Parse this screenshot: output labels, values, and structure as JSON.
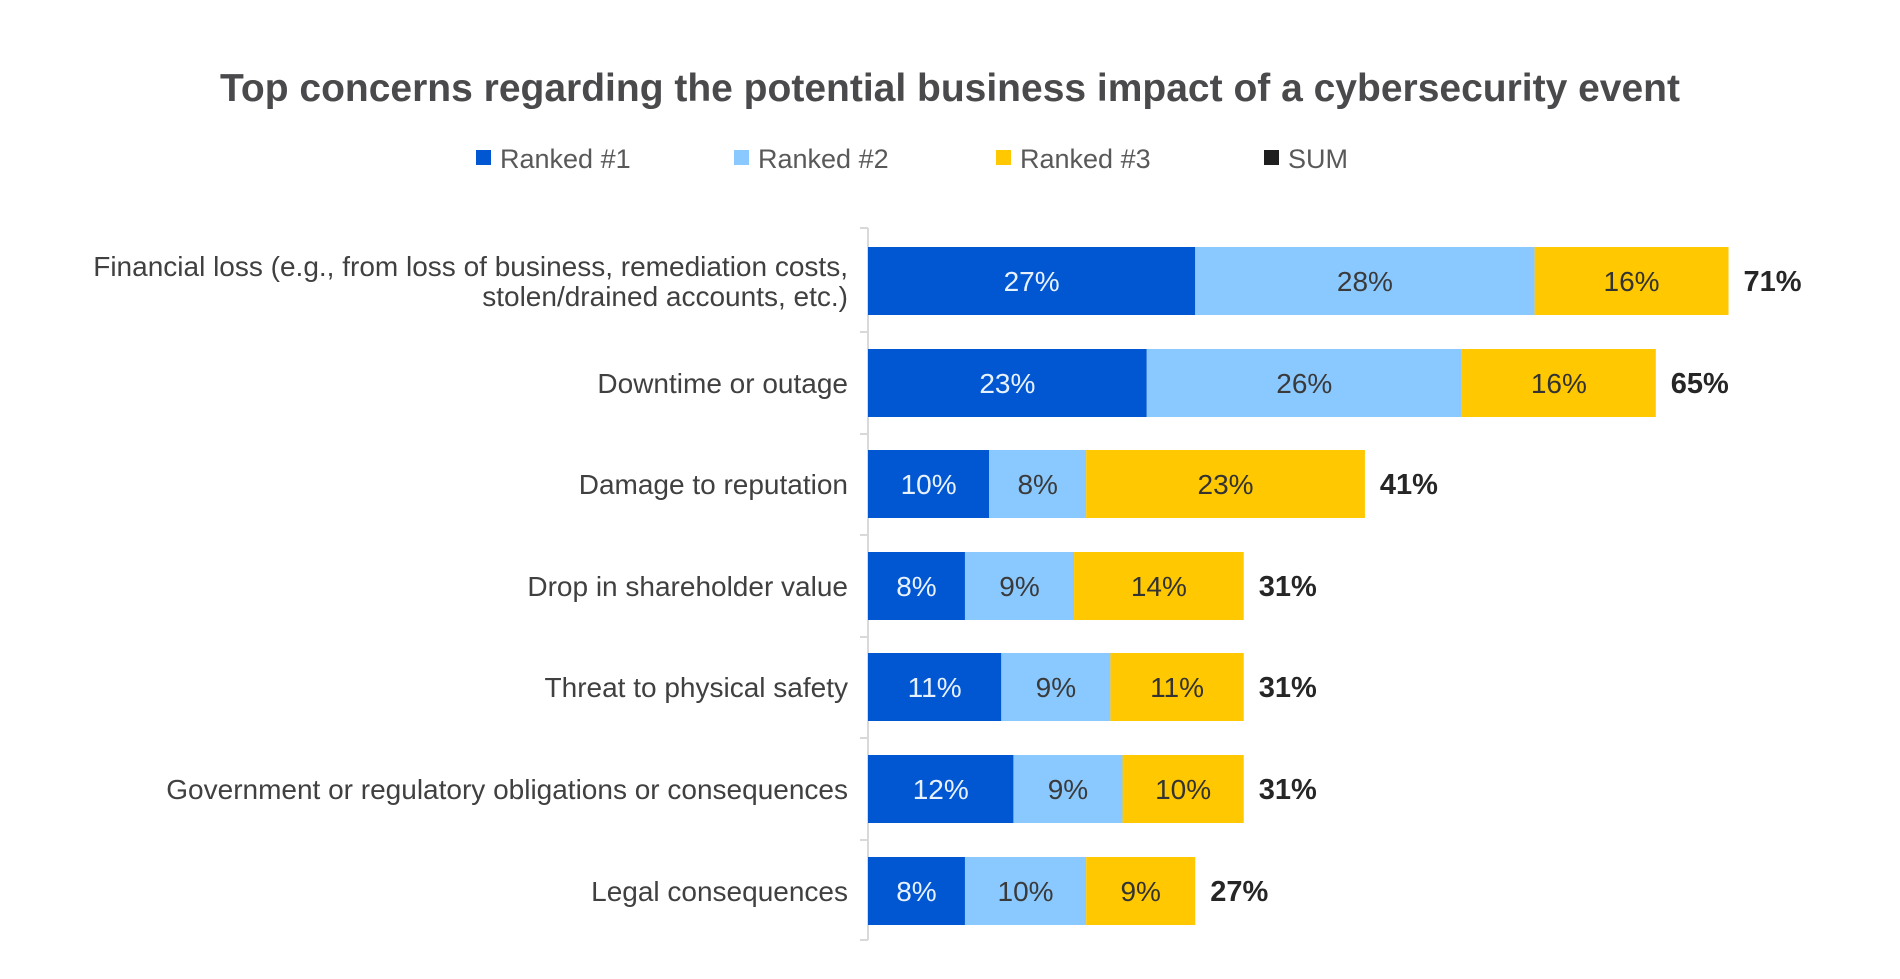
{
  "chart_data": {
    "type": "bar",
    "orientation": "horizontal",
    "stacked": true,
    "title": "Top concerns regarding the potential business impact of a cybersecurity event",
    "legend_placement": "top",
    "grid": false,
    "xlim": [
      0,
      100
    ],
    "categories": [
      [
        "Financial loss (e.g., from loss of business, remediation costs,",
        "stolen/drained accounts, etc.)"
      ],
      [
        "Downtime or outage"
      ],
      [
        "Damage to reputation"
      ],
      [
        "Drop in shareholder value"
      ],
      [
        "Threat to physical safety"
      ],
      [
        "Government or regulatory obligations or consequences"
      ],
      [
        "Legal consequences"
      ]
    ],
    "series": [
      {
        "name": "Ranked #1",
        "color": "#0057d1",
        "label_color": "#e8f1ff",
        "values": [
          27,
          23,
          10,
          8,
          11,
          12,
          8
        ]
      },
      {
        "name": "Ranked #2",
        "color": "#8ac9ff",
        "label_color": "#3a3a3a",
        "values": [
          28,
          26,
          8,
          9,
          9,
          9,
          10
        ]
      },
      {
        "name": "Ranked #3",
        "color": "#ffc800",
        "label_color": "#333333",
        "values": [
          16,
          16,
          23,
          14,
          11,
          10,
          9
        ]
      }
    ],
    "sum": {
      "name": "SUM",
      "color": "#1f1f1f",
      "values": [
        71,
        65,
        41,
        31,
        31,
        31,
        27
      ]
    },
    "value_format": "{v}%"
  }
}
